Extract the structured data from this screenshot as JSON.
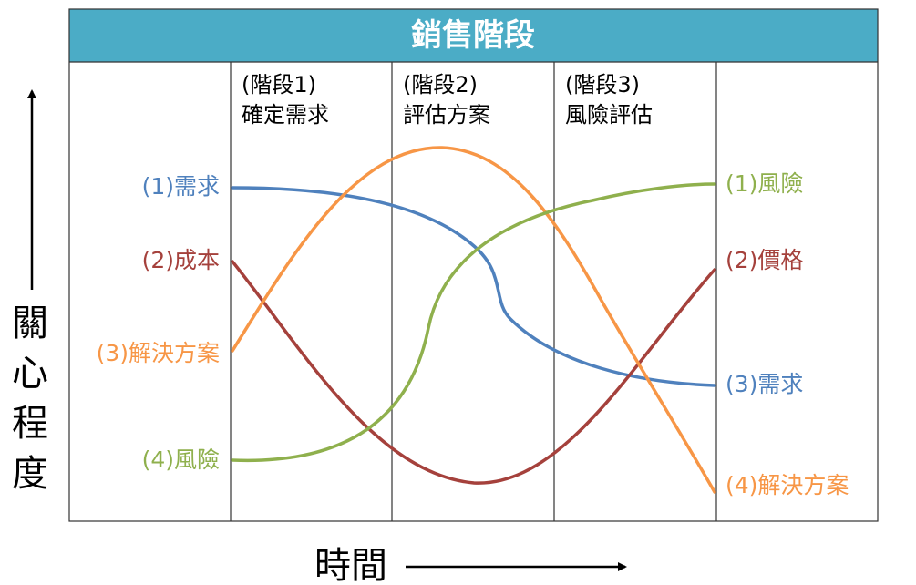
{
  "header": {
    "title": "銷售階段",
    "color": "#4bacc6"
  },
  "stages": [
    {
      "name": "(階段1)",
      "desc": "確定需求"
    },
    {
      "name": "(階段2)",
      "desc": "評估方案"
    },
    {
      "name": "(階段3)",
      "desc": "風險評估"
    }
  ],
  "axes": {
    "y_label": "關心程度",
    "x_label": "時間"
  },
  "series": [
    {
      "key": "need",
      "color": "#4f81bd",
      "left_label": "(1)需求",
      "right_label": "(3)需求"
    },
    {
      "key": "cost",
      "color": "#a5413c",
      "left_label": "(2)成本",
      "right_label": "(2)價格"
    },
    {
      "key": "solution",
      "color": "#f79646",
      "left_label": "(3)解決方案",
      "right_label": "(4)解決方案"
    },
    {
      "key": "risk",
      "color": "#8fb04d",
      "left_label": "(4)風險",
      "right_label": "(1)風險"
    }
  ]
}
